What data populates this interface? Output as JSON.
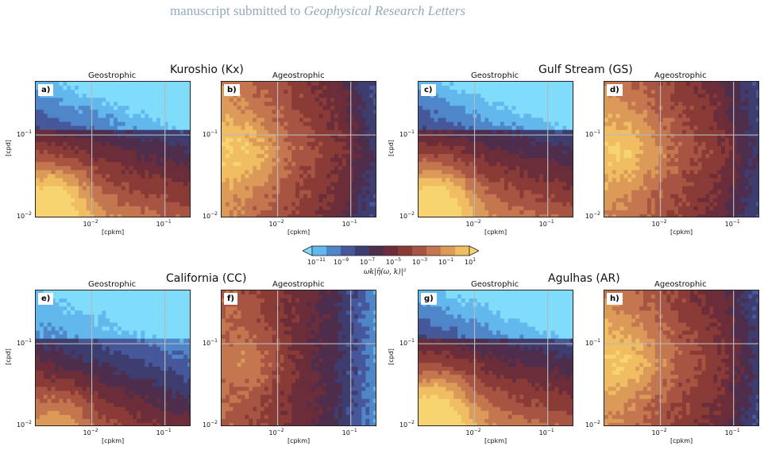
{
  "header": {
    "prefix": "manuscript submitted to",
    "journal": "Geophysical Research Letters"
  },
  "regions": {
    "kx": "Kuroshio (Kx)",
    "gs": "Gulf Stream (GS)",
    "cc": "California (CC)",
    "ar": "Agulhas (AR)"
  },
  "panel_titles": {
    "geo": "Geostrophic",
    "ageo": "Ageostrophic"
  },
  "panel_labels": [
    "a)",
    "b)",
    "c)",
    "d)",
    "e)",
    "f)",
    "g)",
    "h)"
  ],
  "axes": {
    "ylabel": "[cpd]",
    "xlabel": "[cpkm]",
    "yticks": [
      {
        "base": "10",
        "exp": "−1"
      },
      {
        "base": "10",
        "exp": "−2"
      }
    ],
    "xticks": [
      {
        "base": "10",
        "exp": "−2"
      },
      {
        "base": "10",
        "exp": "−1"
      }
    ]
  },
  "colorbar": {
    "label": "ωk|η̂(ω, k)|²",
    "ticks": [
      {
        "base": "10",
        "exp": "−11"
      },
      {
        "base": "10",
        "exp": "−9"
      },
      {
        "base": "10",
        "exp": "−7"
      },
      {
        "base": "10",
        "exp": "−5"
      },
      {
        "base": "10",
        "exp": "−3"
      },
      {
        "base": "10",
        "exp": "−1"
      },
      {
        "base": "10",
        "exp": "1"
      }
    ],
    "colors": [
      "#7fdcfb",
      "#62b8ec",
      "#4f86c9",
      "#46579a",
      "#3d3d70",
      "#4e2d4d",
      "#6c2d3a",
      "#8a3b36",
      "#a85443",
      "#c4764f",
      "#dc9a58",
      "#f0bd62",
      "#f8d470"
    ],
    "scale": "log"
  },
  "chart_data": [
    {
      "id": "a",
      "type": "heatmap",
      "region": "Kuroshio (Kx)",
      "component": "Geostrophic",
      "xlabel": "[cpkm]",
      "ylabel": "[cpd]",
      "xscale": "log",
      "yscale": "log",
      "ylim": [
        0.01,
        0.5
      ],
      "xlim": [
        0.002,
        0.25
      ]
    },
    {
      "id": "b",
      "type": "heatmap",
      "region": "Kuroshio (Kx)",
      "component": "Ageostrophic",
      "xlabel": "[cpkm]",
      "ylabel": "[cpd]",
      "xscale": "log",
      "yscale": "log",
      "ylim": [
        0.01,
        0.5
      ],
      "xlim": [
        0.002,
        0.25
      ]
    },
    {
      "id": "c",
      "type": "heatmap",
      "region": "Gulf Stream (GS)",
      "component": "Geostrophic",
      "xlabel": "[cpkm]",
      "ylabel": "[cpd]",
      "xscale": "log",
      "yscale": "log",
      "ylim": [
        0.01,
        0.5
      ],
      "xlim": [
        0.002,
        0.25
      ]
    },
    {
      "id": "d",
      "type": "heatmap",
      "region": "Gulf Stream (GS)",
      "component": "Ageostrophic",
      "xlabel": "[cpkm]",
      "ylabel": "[cpd]",
      "xscale": "log",
      "yscale": "log",
      "ylim": [
        0.01,
        0.5
      ],
      "xlim": [
        0.002,
        0.25
      ]
    },
    {
      "id": "e",
      "type": "heatmap",
      "region": "California (CC)",
      "component": "Geostrophic",
      "xlabel": "[cpkm]",
      "ylabel": "[cpd]",
      "xscale": "log",
      "yscale": "log",
      "ylim": [
        0.01,
        0.5
      ],
      "xlim": [
        0.002,
        0.25
      ]
    },
    {
      "id": "f",
      "type": "heatmap",
      "region": "California (CC)",
      "component": "Ageostrophic",
      "xlabel": "[cpkm]",
      "ylabel": "[cpd]",
      "xscale": "log",
      "yscale": "log",
      "ylim": [
        0.01,
        0.5
      ],
      "xlim": [
        0.002,
        0.25
      ]
    },
    {
      "id": "g",
      "type": "heatmap",
      "region": "Agulhas (AR)",
      "component": "Geostrophic",
      "xlabel": "[cpkm]",
      "ylabel": "[cpd]",
      "xscale": "log",
      "yscale": "log",
      "ylim": [
        0.01,
        0.5
      ],
      "xlim": [
        0.002,
        0.25
      ]
    },
    {
      "id": "h",
      "type": "heatmap",
      "region": "Agulhas (AR)",
      "component": "Ageostrophic",
      "xlabel": "[cpkm]",
      "ylabel": "[cpd]",
      "xscale": "log",
      "yscale": "log",
      "ylim": [
        0.01,
        0.5
      ],
      "xlim": [
        0.002,
        0.25
      ]
    }
  ]
}
